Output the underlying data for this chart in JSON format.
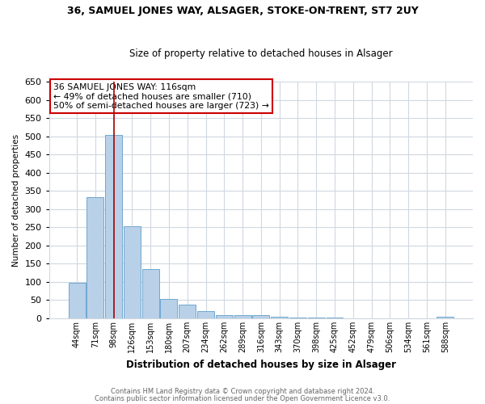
{
  "title": "36, SAMUEL JONES WAY, ALSAGER, STOKE-ON-TRENT, ST7 2UY",
  "subtitle": "Size of property relative to detached houses in Alsager",
  "xlabel": "Distribution of detached houses by size in Alsager",
  "ylabel": "Number of detached properties",
  "categories": [
    "44sqm",
    "71sqm",
    "98sqm",
    "126sqm",
    "153sqm",
    "180sqm",
    "207sqm",
    "234sqm",
    "262sqm",
    "289sqm",
    "316sqm",
    "343sqm",
    "370sqm",
    "398sqm",
    "425sqm",
    "452sqm",
    "479sqm",
    "506sqm",
    "534sqm",
    "561sqm",
    "588sqm"
  ],
  "values": [
    98,
    333,
    503,
    252,
    135,
    53,
    37,
    21,
    10,
    10,
    10,
    5,
    3,
    2,
    2,
    1,
    1,
    1,
    1,
    1,
    5
  ],
  "bar_color": "#b8d0e8",
  "bar_edge_color": "#6fa8d0",
  "ylim": [
    0,
    650
  ],
  "yticks": [
    0,
    50,
    100,
    150,
    200,
    250,
    300,
    350,
    400,
    450,
    500,
    550,
    600,
    650
  ],
  "vline_x_index": 2,
  "vline_color": "#aa0000",
  "annotation_text": "36 SAMUEL JONES WAY: 116sqm\n← 49% of detached houses are smaller (710)\n50% of semi-detached houses are larger (723) →",
  "annotation_box_color": "#ffffff",
  "annotation_box_edge": "#cc0000",
  "footer1": "Contains HM Land Registry data © Crown copyright and database right 2024.",
  "footer2": "Contains public sector information licensed under the Open Government Licence v3.0.",
  "background_color": "#ffffff",
  "grid_color": "#d0d8e0"
}
